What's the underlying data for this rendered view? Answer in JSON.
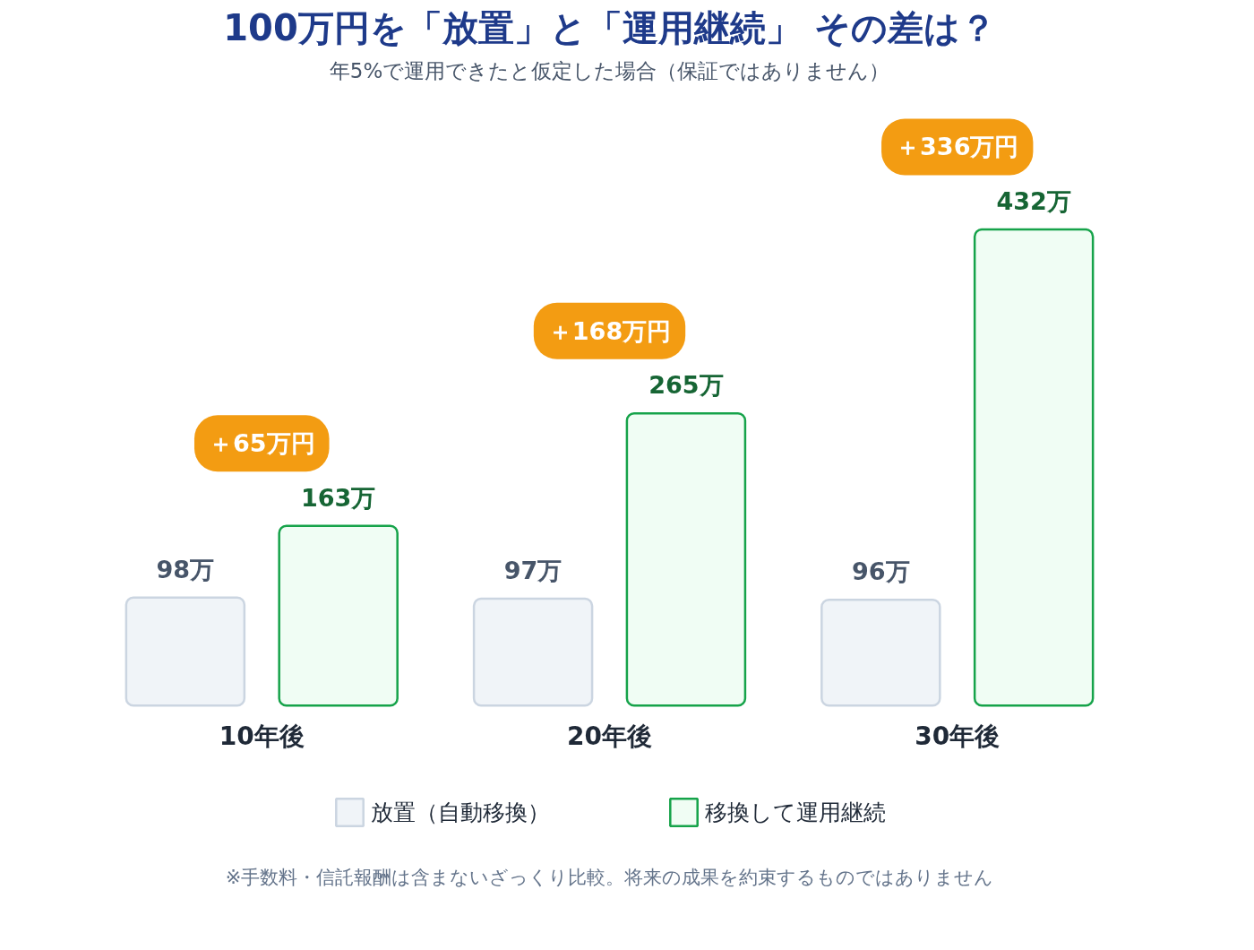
{
  "chart_data": {
    "type": "bar",
    "title": "100万円を「放置」と「運用継続」 その差は？",
    "subtitle": "年5%で運用できたと仮定した場合（保証ではありません）",
    "categories": [
      "10年後",
      "20年後",
      "30年後"
    ],
    "series": [
      {
        "name": "放置（自動移換）",
        "color": "#f0f4f8",
        "values": [
          98,
          97,
          96
        ],
        "value_labels": [
          "98万",
          "97万",
          "96万"
        ]
      },
      {
        "name": "移換して運用継続",
        "color": "#f0fdf4",
        "values": [
          163,
          265,
          432
        ],
        "value_labels": [
          "163万",
          "265万",
          "432万"
        ]
      }
    ],
    "annotations": [
      "＋65万円",
      "＋168万円",
      "＋336万円",
      "※手数料・信託報酬は含まないざっくり比較。将来の成果を約束するものではありません"
    ],
    "tick_labels": "x",
    "grid": false,
    "legend": "bottom"
  }
}
